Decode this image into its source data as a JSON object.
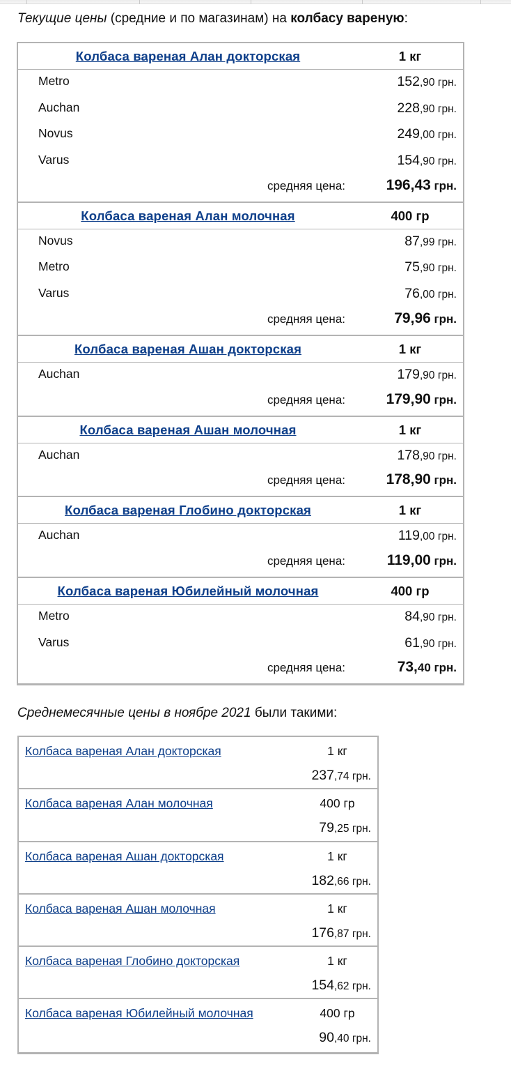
{
  "heading": {
    "italic": "Текущие цены",
    "middle": " (средние и по магазинам) на ",
    "bold": "колбасу вареную",
    "tail": ":"
  },
  "current": [
    {
      "product": "Колбаса вареная Алан докторская",
      "unit": "1 кг",
      "stores": [
        {
          "name": "Metro",
          "price_big": "152",
          "price_small": ",90 грн."
        },
        {
          "name": "Auchan",
          "price_big": "228",
          "price_small": ",90 грн."
        },
        {
          "name": "Novus",
          "price_big": "249",
          "price_small": ",00 грн."
        },
        {
          "name": "Varus",
          "price_big": "154",
          "price_small": ",90 грн."
        }
      ],
      "avg_label": "средняя цена:",
      "avg_big": "196,43",
      "avg_small": " грн."
    },
    {
      "product": "Колбаса вареная Алан молочная",
      "unit": "400 гр",
      "stores": [
        {
          "name": "Novus",
          "price_big": "87",
          "price_small": ",99 грн."
        },
        {
          "name": "Metro",
          "price_big": "75",
          "price_small": ",90 грн."
        },
        {
          "name": "Varus",
          "price_big": "76",
          "price_small": ",00 грн."
        }
      ],
      "avg_label": "средняя цена:",
      "avg_big": "79,96",
      "avg_small": " грн."
    },
    {
      "product": "Колбаса вареная Ашан докторская",
      "unit": "1 кг",
      "stores": [
        {
          "name": "Auchan",
          "price_big": "179",
          "price_small": ",90 грн."
        }
      ],
      "avg_label": "средняя цена:",
      "avg_big": "179,90",
      "avg_small": " грн."
    },
    {
      "product": "Колбаса вареная Ашан молочная",
      "unit": "1 кг",
      "stores": [
        {
          "name": "Auchan",
          "price_big": "178",
          "price_small": ",90 грн."
        }
      ],
      "avg_label": "средняя цена:",
      "avg_big": "178,90",
      "avg_small": " грн."
    },
    {
      "product": "Колбаса вареная Глобино докторская",
      "unit": "1 кг",
      "stores": [
        {
          "name": "Auchan",
          "price_big": "119",
          "price_small": ",00 грн."
        }
      ],
      "avg_label": "средняя цена:",
      "avg_big": "119,00",
      "avg_small": " грн."
    },
    {
      "product": "Колбаса вареная Юбилейный молочная",
      "unit": "400 гр",
      "stores": [
        {
          "name": "Metro",
          "price_big": "84",
          "price_small": ",90 грн."
        },
        {
          "name": "Varus",
          "price_big": "61",
          "price_small": ",90 грн."
        }
      ],
      "avg_label": "средняя цена:",
      "avg_big": "73,",
      "avg_small": "40 грн."
    }
  ],
  "subheading": {
    "italic": "Среднемесячные цены в ноябре 2021",
    "tail": " были такими:"
  },
  "monthly": [
    {
      "product": "Колбаса вареная Алан докторская",
      "unit": "1 кг",
      "price_big": "237",
      "price_small": ",74 грн."
    },
    {
      "product": "Колбаса вареная Алан молочная",
      "unit": "400 гр",
      "price_big": "79",
      "price_small": ",25 грн."
    },
    {
      "product": "Колбаса вареная Ашан докторская",
      "unit": "1 кг",
      "price_big": "182",
      "price_small": ",66 грн."
    },
    {
      "product": "Колбаса вареная Ашан молочная",
      "unit": "1 кг",
      "price_big": "176",
      "price_small": ",87 грн."
    },
    {
      "product": "Колбаса вареная Глобино докторская",
      "unit": "1 кг",
      "price_big": "154",
      "price_small": ",62 грн."
    },
    {
      "product": "Колбаса вареная Юбилейный молочная",
      "unit": "400 гр",
      "price_big": "90",
      "price_small": ",40 грн."
    }
  ]
}
